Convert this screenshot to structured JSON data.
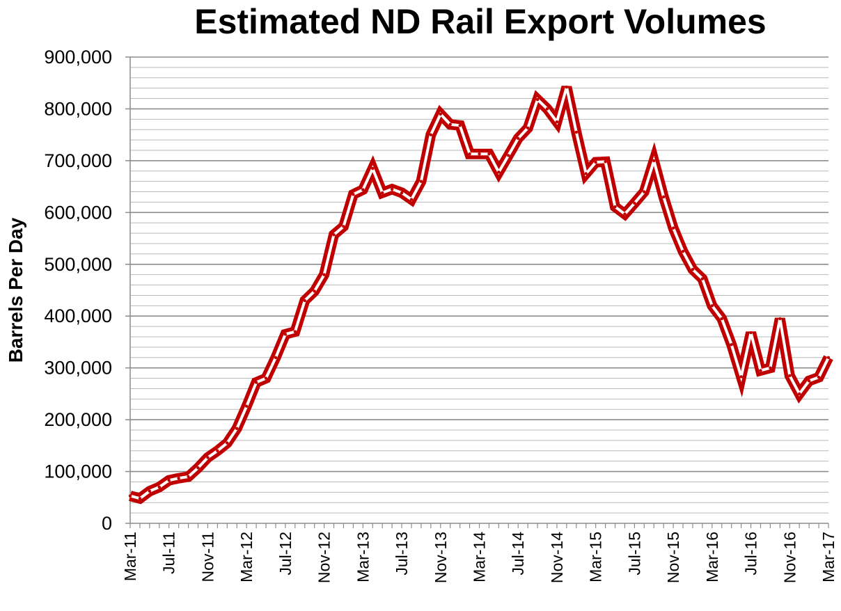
{
  "chart_data": {
    "type": "line",
    "title": "Estimated ND Rail Export Volumes",
    "xlabel": "",
    "ylabel": "Barrels Per Day",
    "ylim": [
      0,
      900000
    ],
    "yticks": [
      "0",
      "100,000",
      "200,000",
      "300,000",
      "400,000",
      "500,000",
      "600,000",
      "700,000",
      "800,000",
      "900,000"
    ],
    "xtick_labels": [
      "Mar-11",
      "Jul-11",
      "Nov-11",
      "Mar-12",
      "Jul-12",
      "Nov-12",
      "Mar-13",
      "Jul-13",
      "Nov-13",
      "Mar-14",
      "Jul-14",
      "Nov-14",
      "Mar-15",
      "Jul-15",
      "Nov-15",
      "Mar-16",
      "Jul-16",
      "Nov-16",
      "Mar-17"
    ],
    "grid": true,
    "line_color": "#c00000",
    "x": [
      "Mar-11",
      "Apr-11",
      "May-11",
      "Jun-11",
      "Jul-11",
      "Aug-11",
      "Sep-11",
      "Oct-11",
      "Nov-11",
      "Dec-11",
      "Jan-12",
      "Feb-12",
      "Mar-12",
      "Apr-12",
      "May-12",
      "Jun-12",
      "Jul-12",
      "Aug-12",
      "Sep-12",
      "Oct-12",
      "Nov-12",
      "Dec-12",
      "Jan-13",
      "Feb-13",
      "Mar-13",
      "Apr-13",
      "May-13",
      "Jun-13",
      "Jul-13",
      "Aug-13",
      "Sep-13",
      "Oct-13",
      "Nov-13",
      "Dec-13",
      "Jan-14",
      "Feb-14",
      "Mar-14",
      "Apr-14",
      "May-14",
      "Jun-14",
      "Jul-14",
      "Aug-14",
      "Sep-14",
      "Oct-14",
      "Nov-14",
      "Dec-14",
      "Jan-15",
      "Feb-15",
      "Mar-15",
      "Apr-15",
      "May-15",
      "Jun-15",
      "Jul-15",
      "Aug-15",
      "Sep-15",
      "Oct-15",
      "Nov-15",
      "Dec-15",
      "Jan-16",
      "Feb-16",
      "Mar-16",
      "Apr-16",
      "May-16",
      "Jun-16",
      "Jul-16",
      "Aug-16",
      "Sep-16",
      "Oct-16",
      "Nov-16",
      "Dec-16",
      "Jan-17",
      "Feb-17",
      "Mar-17"
    ],
    "series": [
      {
        "values": [
          53000,
          48000,
          62000,
          70000,
          83000,
          87000,
          90000,
          107000,
          127000,
          140000,
          155000,
          183000,
          226000,
          272000,
          280000,
          320000,
          365000,
          370000,
          430000,
          448000,
          480000,
          557000,
          573000,
          635000,
          644000,
          685000,
          638000,
          645000,
          638000,
          625000,
          660000,
          750000,
          790000,
          770000,
          768000,
          713000,
          713000,
          713000,
          678000,
          710000,
          743000,
          763000,
          818000,
          800000,
          775000,
          842000,
          755000,
          675000,
          697000,
          698000,
          611000,
          597000,
          618000,
          640000,
          700000,
          630000,
          570000,
          525000,
          490000,
          472000,
          420000,
          395000,
          345000,
          283000,
          368000,
          295000,
          300000,
          395000,
          285000,
          250000,
          275000,
          282000,
          320000
        ]
      }
    ]
  }
}
